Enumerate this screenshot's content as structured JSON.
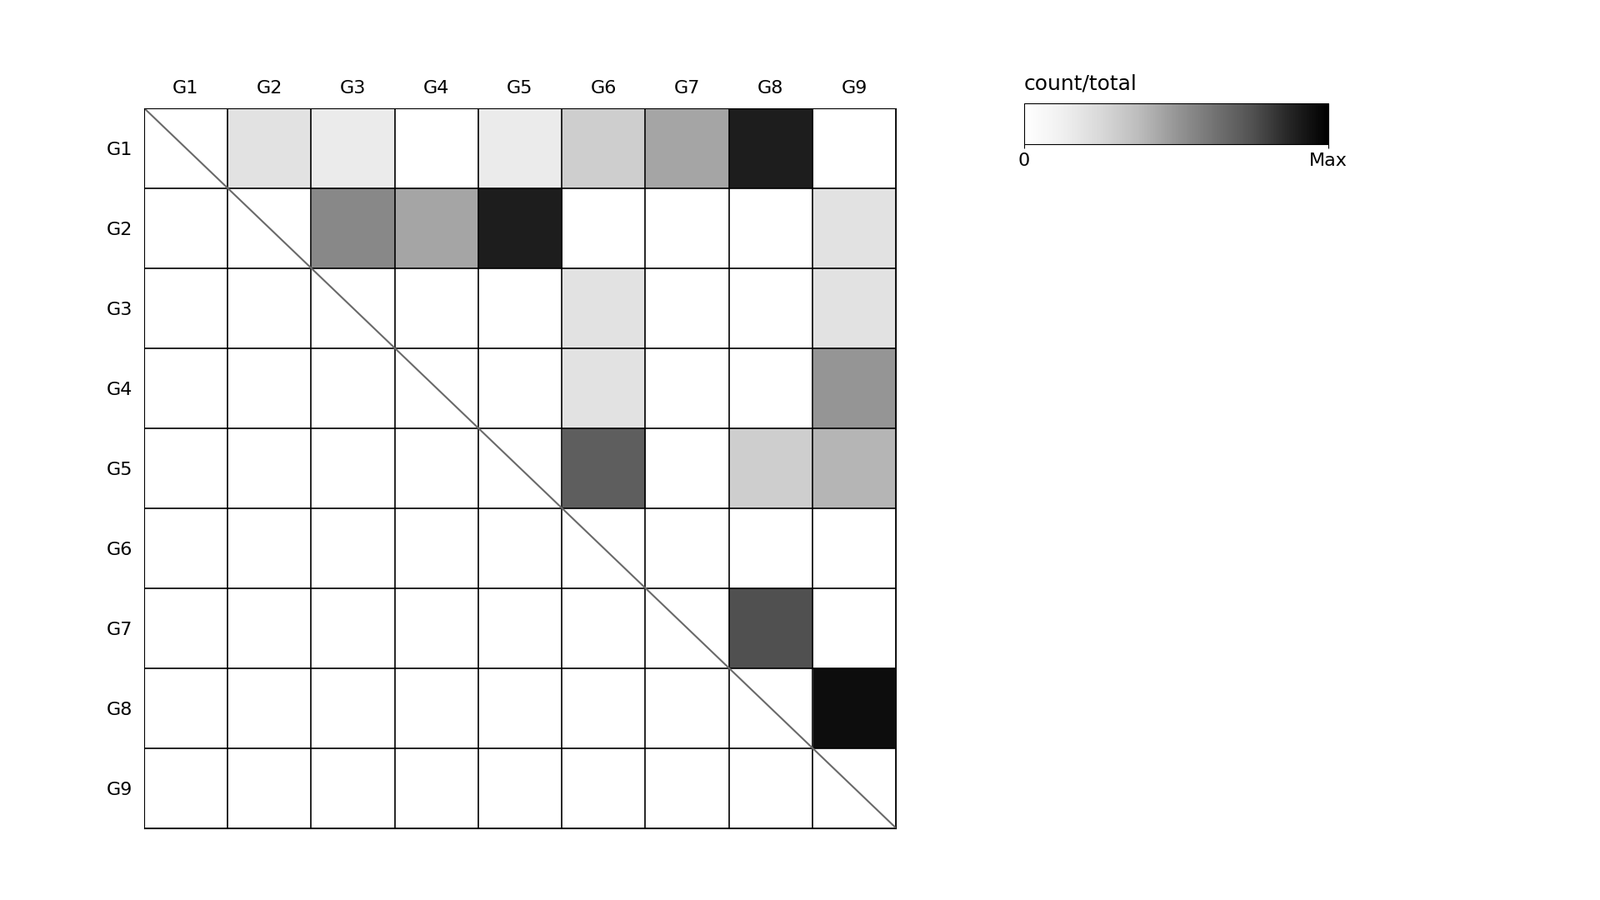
{
  "chart_data": {
    "type": "heatmap",
    "categories": [
      "G1",
      "G2",
      "G3",
      "G4",
      "G5",
      "G6",
      "G7",
      "G8",
      "G9"
    ],
    "cells": [
      [
        null,
        0.2,
        0.15,
        null,
        0.15,
        0.3,
        0.45,
        0.9,
        null
      ],
      [
        null,
        null,
        0.55,
        0.45,
        0.9,
        null,
        null,
        null,
        0.2
      ],
      [
        null,
        null,
        null,
        null,
        null,
        0.2,
        null,
        null,
        0.2
      ],
      [
        null,
        null,
        null,
        null,
        null,
        0.2,
        null,
        null,
        0.5
      ],
      [
        null,
        null,
        null,
        null,
        null,
        0.7,
        null,
        0.3,
        0.4
      ],
      [
        null,
        null,
        null,
        null,
        null,
        null,
        null,
        null,
        null
      ],
      [
        null,
        null,
        null,
        null,
        null,
        null,
        null,
        0.75,
        null
      ],
      [
        null,
        null,
        null,
        null,
        null,
        null,
        null,
        null,
        0.95
      ],
      [
        null,
        null,
        null,
        null,
        null,
        null,
        null,
        null,
        null
      ]
    ],
    "colorbar": {
      "label": "count/total",
      "range": [
        0,
        1
      ],
      "ticks": [
        0,
        {
          "value": 1,
          "label": "Max"
        }
      ]
    },
    "grid": true
  }
}
